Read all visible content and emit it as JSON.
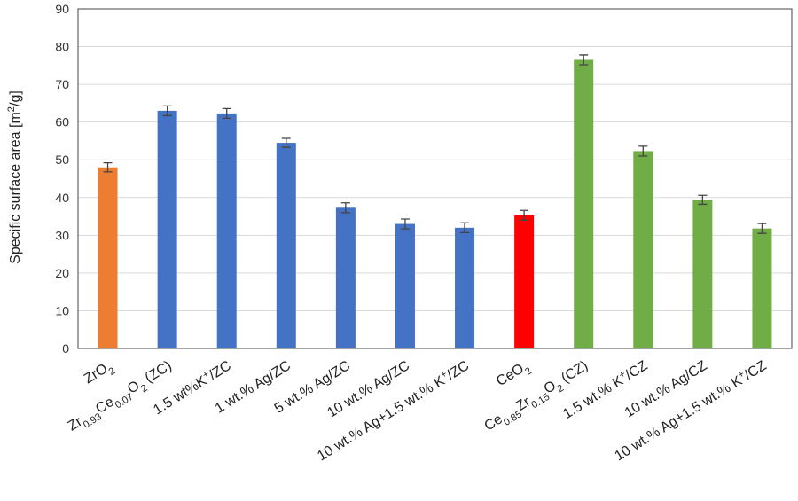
{
  "chart_data": {
    "type": "bar",
    "ylabel": [
      "Specific surface area [m",
      {
        "sup": "2"
      },
      "/g]"
    ],
    "categories": [
      [
        "ZrO",
        {
          "sub": "2"
        }
      ],
      [
        "Zr",
        {
          "sub": "0.93"
        },
        "Ce",
        {
          "sub": "0.07"
        },
        "O",
        {
          "sub": "2"
        },
        " (ZC)"
      ],
      [
        "1.5 wt%K",
        {
          "sup": "+"
        },
        "/ZC"
      ],
      [
        "1 wt.% Ag/ZC"
      ],
      [
        "5 wt.% Ag/ZC"
      ],
      [
        "10 wt.% Ag/ZC"
      ],
      [
        "10 wt.% Ag+1.5 wt.% K",
        {
          "sup": "+"
        },
        "/ZC"
      ],
      [
        "CeO",
        {
          "sub": "2"
        }
      ],
      [
        "Ce",
        {
          "sub": "0.85"
        },
        "Zr",
        {
          "sub": "0.15"
        },
        "O",
        {
          "sub": "2"
        },
        " (CZ)"
      ],
      [
        "1.5 wt.% K",
        {
          "sup": "+"
        },
        "/CZ"
      ],
      [
        "10 wt.% Ag/CZ"
      ],
      [
        "10 wt.% Ag+1.5 wt.% K",
        {
          "sup": "+"
        },
        "/CZ"
      ]
    ],
    "values": [
      48,
      63,
      62.3,
      54.5,
      37.3,
      33,
      32,
      35.3,
      76.5,
      52.3,
      39.4,
      31.8
    ],
    "errors": [
      1.2,
      1.3,
      1.3,
      1.2,
      1.3,
      1.3,
      1.3,
      1.3,
      1.3,
      1.3,
      1.2,
      1.3
    ],
    "colors": [
      "#ED7D31",
      "#4472C4",
      "#4472C4",
      "#4472C4",
      "#4472C4",
      "#4472C4",
      "#4472C4",
      "#FF0000",
      "#70AD47",
      "#70AD47",
      "#70AD47",
      "#70AD47"
    ],
    "ylim": [
      0,
      90
    ],
    "yticks": [
      0,
      10,
      20,
      30,
      40,
      50,
      60,
      70,
      80,
      90
    ],
    "grid": true
  }
}
